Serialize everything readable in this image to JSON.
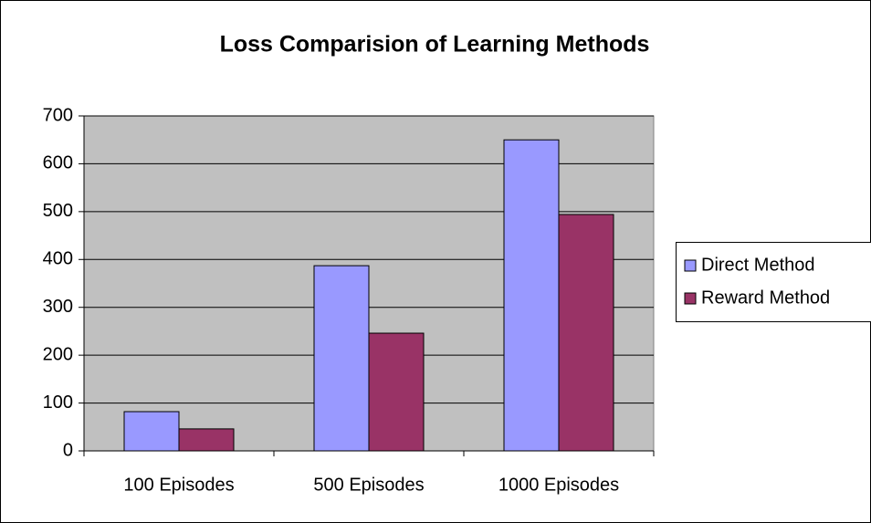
{
  "chart_data": {
    "type": "bar",
    "title": "Loss Comparision of Learning Methods",
    "categories": [
      "100 Episodes",
      "500 Episodes",
      "1000 Episodes"
    ],
    "series": [
      {
        "name": "Direct Method",
        "color": "#9999ff",
        "values": [
          82,
          387,
          650
        ]
      },
      {
        "name": "Reward Method",
        "color": "#993366",
        "values": [
          46,
          246,
          494
        ]
      }
    ],
    "ylim": [
      0,
      700
    ],
    "yticks": [
      0,
      100,
      200,
      300,
      400,
      500,
      600,
      700
    ],
    "grid": true,
    "legend": "right"
  }
}
